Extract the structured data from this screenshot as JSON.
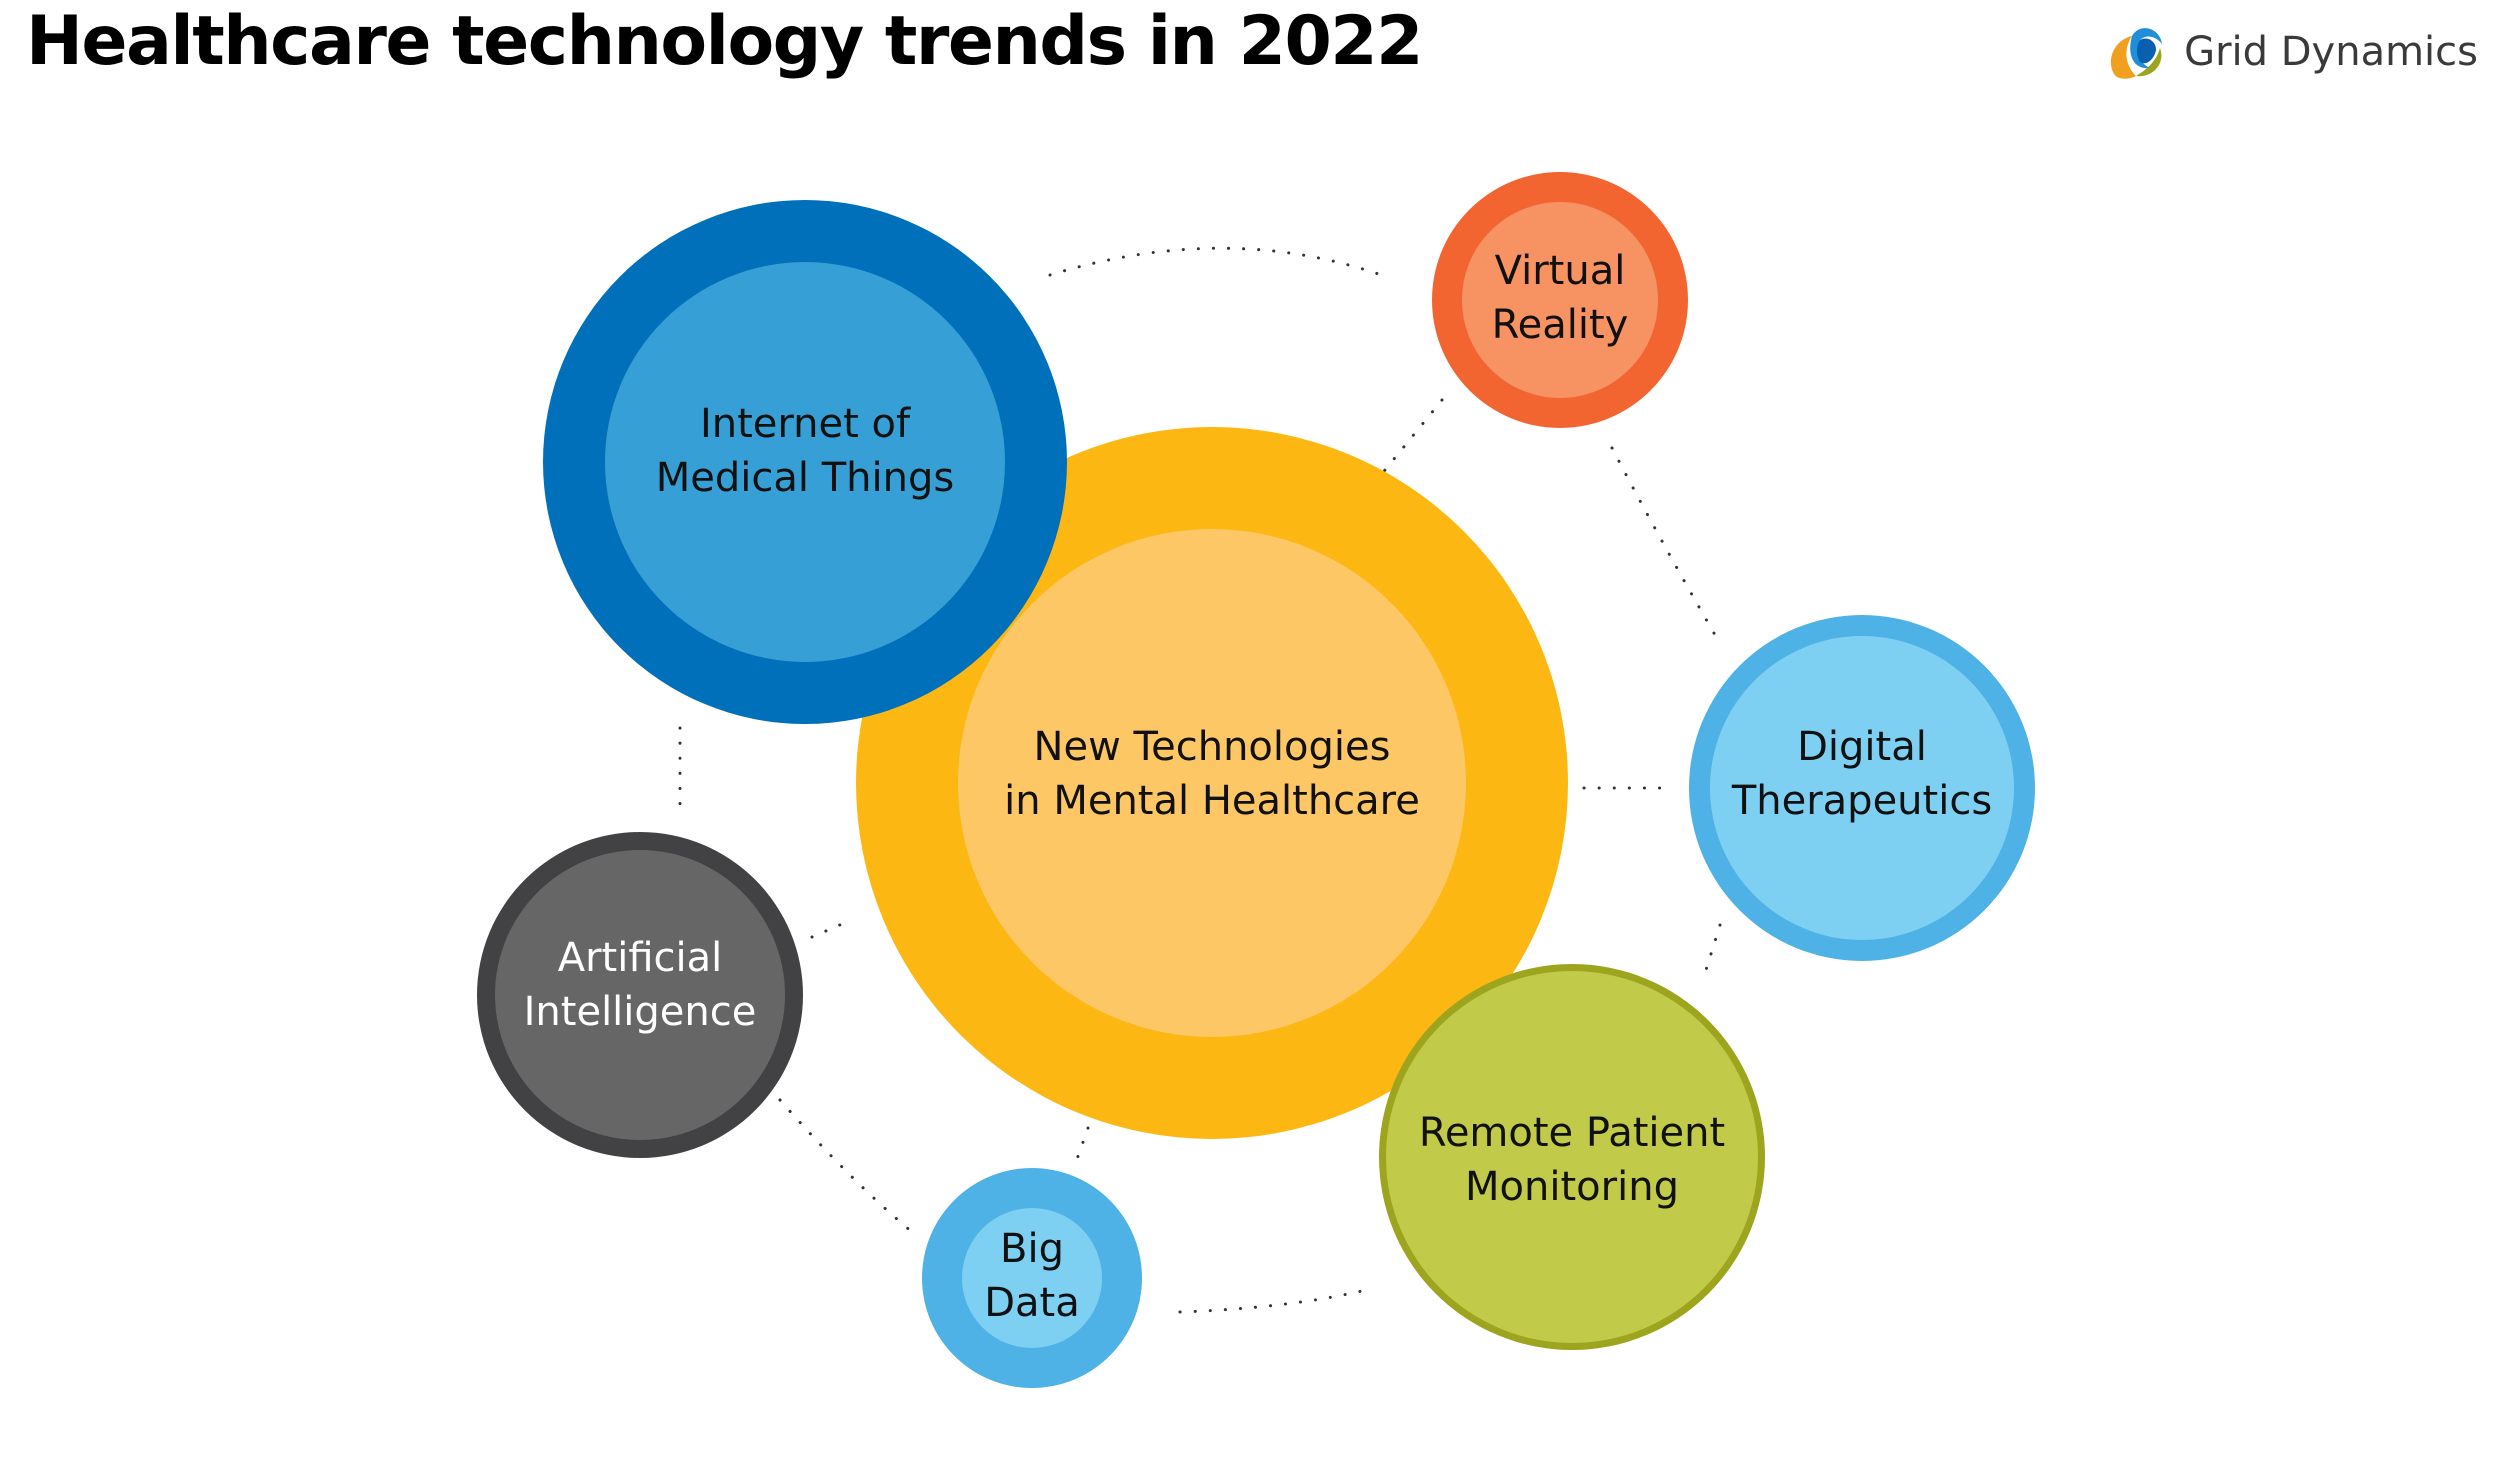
{
  "title": "Healthcare technology trends in 2022",
  "brand": {
    "name": "Grid Dynamics",
    "logo_icon": "grid-dynamics-logo-icon"
  },
  "center": {
    "lines": [
      "New Technologies",
      "in Mental Healthcare"
    ]
  },
  "topics": [
    {
      "id": "iomt",
      "lines": [
        "Internet of",
        "Medical Things"
      ]
    },
    {
      "id": "vr",
      "lines": [
        "Virtual",
        "Reality"
      ]
    },
    {
      "id": "dtx",
      "lines": [
        "Digital",
        "Therapeutics"
      ]
    },
    {
      "id": "rpm",
      "lines": [
        "Remote Patient",
        "Monitoring"
      ]
    },
    {
      "id": "bigdata",
      "lines": [
        "Big",
        "Data"
      ]
    },
    {
      "id": "ai",
      "lines": [
        "Artificial",
        "Intelligence"
      ]
    }
  ],
  "colors": {
    "center_outer": "#FDB713",
    "center_inner": "#FEC766",
    "iomt_outer": "#0070BA",
    "iomt_inner": "#369FD6",
    "vr_outer": "#F26531",
    "vr_inner": "#F79363",
    "dtx_outer": "#4EB2E6",
    "dtx_inner": "#7DD0F2",
    "rpm_outer": "#9DA51F",
    "rpm_inner": "#C2CA49",
    "bigdata_outer": "#4EB2E6",
    "bigdata_inner": "#7DD0F2",
    "ai_outer": "#424244",
    "ai_inner": "#666666"
  }
}
